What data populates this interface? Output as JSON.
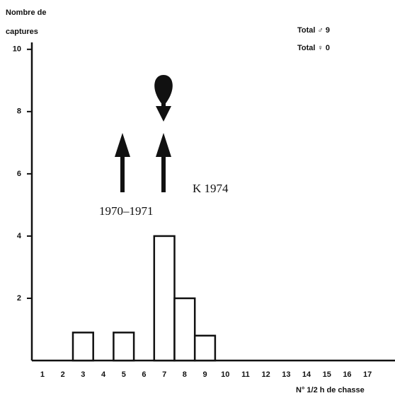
{
  "chart_data": {
    "type": "bar",
    "ylabel": [
      "Nombre de",
      "captures"
    ],
    "xlabel": "N° 1/2 h de chasse",
    "categories": [
      "1",
      "2",
      "3",
      "4",
      "5",
      "6",
      "7",
      "8",
      "9",
      "10",
      "11",
      "12",
      "13",
      "14",
      "15",
      "16",
      "17"
    ],
    "values": [
      0,
      0,
      0.9,
      0,
      0.9,
      0,
      4,
      2,
      0.8,
      0,
      0,
      0,
      0,
      0,
      0,
      0,
      0
    ],
    "color": "#ffffff",
    "ylim": [
      0,
      10.2
    ],
    "yticks": [
      2,
      4,
      6,
      8,
      10
    ],
    "annotations": [
      "Total ♂ 9",
      "Total ♀ 0",
      "1970–1971",
      "K 1974"
    ]
  }
}
